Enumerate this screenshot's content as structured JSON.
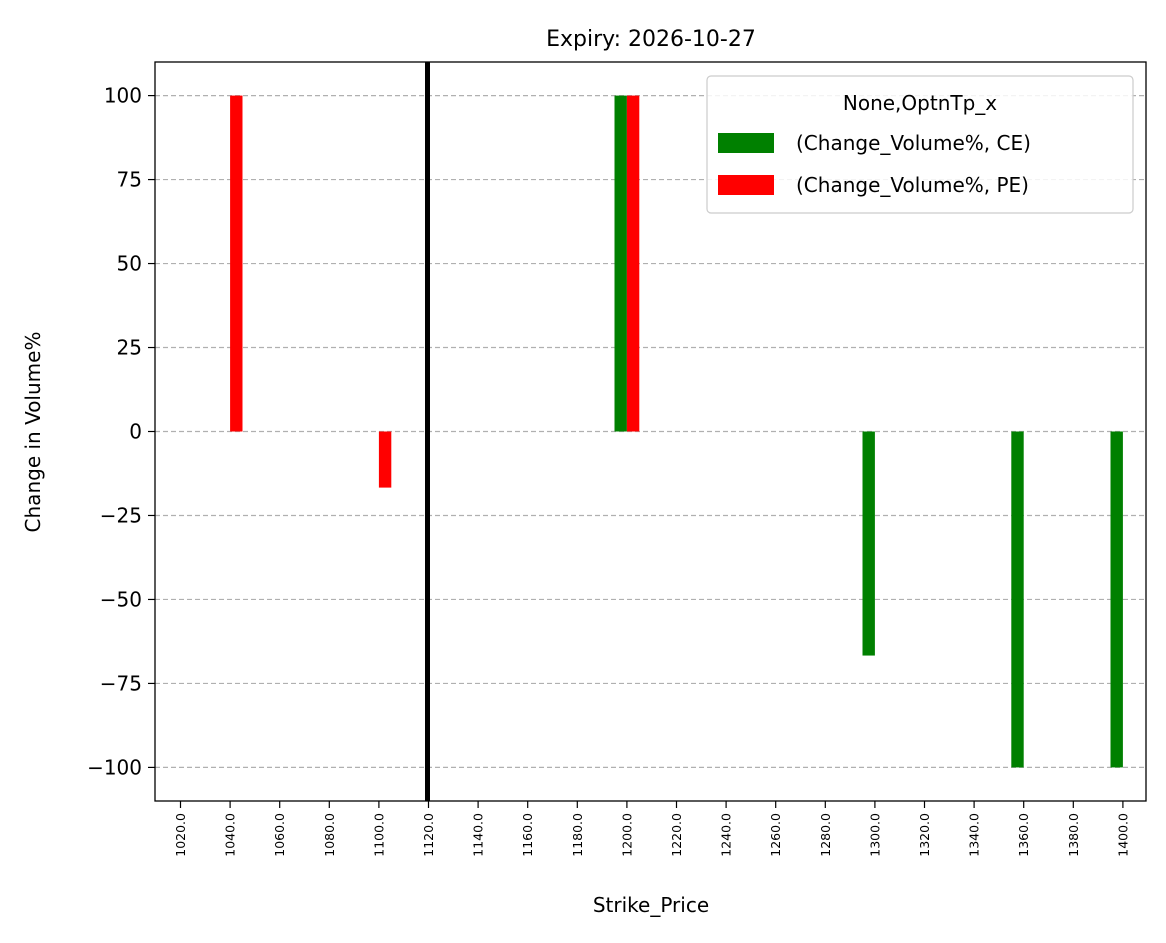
{
  "chart_data": {
    "type": "bar",
    "title": "Expiry: 2026-10-27",
    "xlabel": "Strike_Price",
    "ylabel": "Change in Volume%",
    "categories": [
      "1020.0",
      "1040.0",
      "1060.0",
      "1080.0",
      "1100.0",
      "1120.0",
      "1140.0",
      "1160.0",
      "1180.0",
      "1200.0",
      "1220.0",
      "1240.0",
      "1260.0",
      "1280.0",
      "1300.0",
      "1320.0",
      "1340.0",
      "1360.0",
      "1380.0",
      "1400.0"
    ],
    "series": [
      {
        "name": "(Change_Volume%, CE)",
        "color": "#008000",
        "values": [
          null,
          null,
          null,
          null,
          null,
          null,
          null,
          null,
          null,
          100,
          null,
          null,
          null,
          null,
          -66.7,
          null,
          null,
          -100,
          null,
          -100
        ]
      },
      {
        "name": "(Change_Volume%, PE)",
        "color": "#ff0000",
        "values": [
          null,
          100,
          null,
          null,
          -16.7,
          null,
          null,
          null,
          null,
          100,
          null,
          null,
          null,
          null,
          null,
          null,
          null,
          null,
          null,
          null
        ]
      }
    ],
    "ylim": [
      -110,
      110
    ],
    "yticks": [
      -100,
      -75,
      -50,
      -25,
      0,
      25,
      50,
      75,
      100
    ],
    "ytick_labels": [
      "−100",
      "−75",
      "−50",
      "−25",
      "0",
      "25",
      "50",
      "75",
      "100"
    ],
    "vertical_line_at": "1120.0",
    "vertical_line_color": "#000000",
    "grid": "y dashed",
    "legend": {
      "title": "None,OptnTp_x",
      "placement": "top-right"
    }
  }
}
